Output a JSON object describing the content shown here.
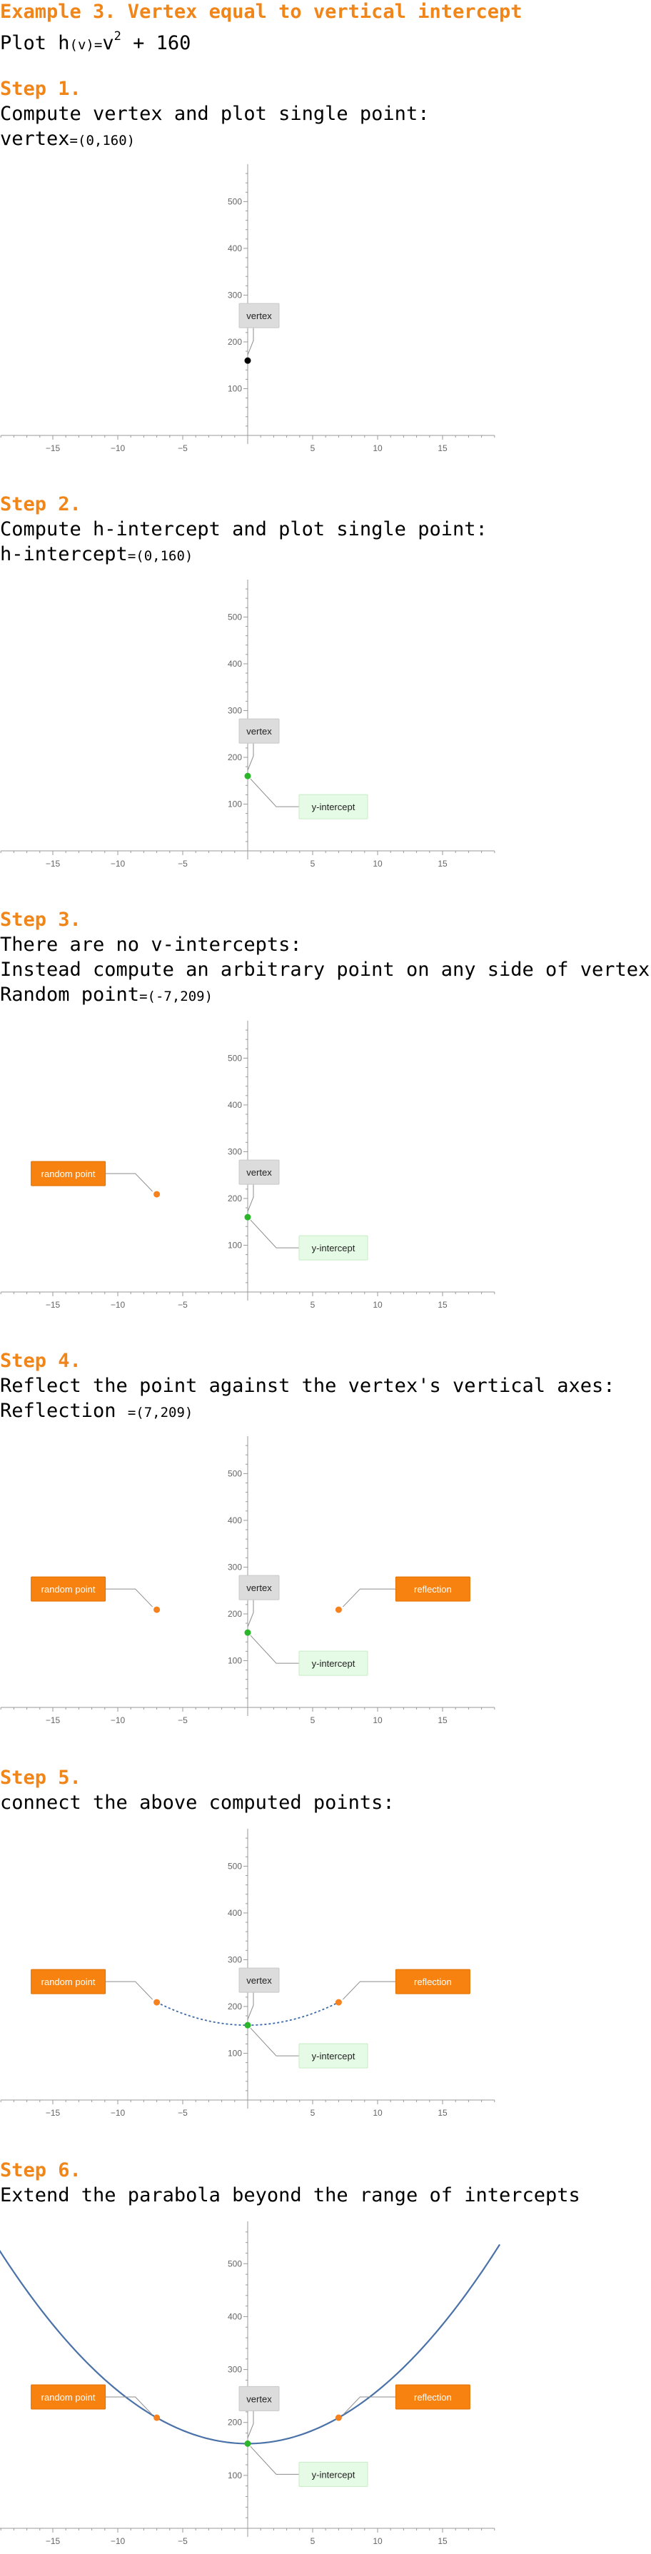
{
  "header": {
    "title": "Example 3. Vertex equal to vertical intercept",
    "problem": {
      "prefix": "Plot h",
      "arg": "(v)",
      "eq": "=",
      "base": "v",
      "exp": "2",
      "rest": " + 160"
    }
  },
  "steps": [
    {
      "label": "Step 1.",
      "lines": [
        {
          "text": "Compute vertex and plot single point:"
        },
        {
          "name": "vertex",
          "eq": "=",
          "val": "(0,160)"
        }
      ]
    },
    {
      "label": "Step 2.",
      "lines": [
        {
          "text": "Compute h-intercept and plot single point:"
        },
        {
          "name": "h-intercept",
          "eq": "=",
          "val": "(0,160)"
        }
      ]
    },
    {
      "label": "Step 3.",
      "lines": [
        {
          "text": "There are no v-intercepts:"
        },
        {
          "text": "Instead compute an arbitrary point on any side of vertex:"
        },
        {
          "name": "Random point",
          "eq": "=",
          "val": "(-7,209)"
        }
      ]
    },
    {
      "label": "Step 4.",
      "lines": [
        {
          "text": "Reflect the point against the vertex's vertical axes:"
        },
        {
          "name": "Reflection ",
          "eq": "=",
          "val": "(7,209)"
        }
      ]
    },
    {
      "label": "Step 5.",
      "lines": [
        {
          "text": "connect the above computed points:"
        }
      ]
    },
    {
      "label": "Step 6.",
      "lines": [
        {
          "text": "Extend the parabola beyond the range of intercepts"
        }
      ]
    }
  ],
  "chart_data": [
    {
      "type": "scatter",
      "xlim": [
        -19,
        19
      ],
      "ylim": [
        -20,
        560
      ],
      "xticks": [
        -15,
        -10,
        -5,
        5,
        10,
        15
      ],
      "yticks": [
        100,
        200,
        300,
        400,
        500
      ],
      "points": [
        {
          "x": 0,
          "y": 160,
          "color": "#000000"
        }
      ],
      "labels": [
        {
          "text": "vertex",
          "x": 0,
          "y": 160,
          "style": "gray"
        }
      ],
      "curve": "none"
    },
    {
      "type": "scatter",
      "xlim": [
        -19,
        19
      ],
      "ylim": [
        -20,
        560
      ],
      "xticks": [
        -15,
        -10,
        -5,
        5,
        10,
        15
      ],
      "yticks": [
        100,
        200,
        300,
        400,
        500
      ],
      "points": [
        {
          "x": 0,
          "y": 160,
          "color": "#2ab52a"
        }
      ],
      "labels": [
        {
          "text": "vertex",
          "x": 0,
          "y": 160,
          "style": "gray"
        },
        {
          "text": "y-intercept",
          "x": 0,
          "y": 160,
          "style": "green"
        }
      ],
      "curve": "none"
    },
    {
      "type": "scatter",
      "xlim": [
        -19,
        19
      ],
      "ylim": [
        -20,
        560
      ],
      "xticks": [
        -15,
        -10,
        -5,
        5,
        10,
        15
      ],
      "yticks": [
        100,
        200,
        300,
        400,
        500
      ],
      "points": [
        {
          "x": -7,
          "y": 209,
          "color": "#f5821f"
        },
        {
          "x": 0,
          "y": 160,
          "color": "#2ab52a"
        }
      ],
      "labels": [
        {
          "text": "random point",
          "x": -7,
          "y": 209,
          "style": "orange"
        },
        {
          "text": "vertex",
          "x": 0,
          "y": 160,
          "style": "gray"
        },
        {
          "text": "y-intercept",
          "x": 0,
          "y": 160,
          "style": "green"
        }
      ],
      "curve": "none"
    },
    {
      "type": "scatter",
      "xlim": [
        -19,
        19
      ],
      "ylim": [
        -20,
        560
      ],
      "xticks": [
        -15,
        -10,
        -5,
        5,
        10,
        15
      ],
      "yticks": [
        100,
        200,
        300,
        400,
        500
      ],
      "points": [
        {
          "x": -7,
          "y": 209,
          "color": "#f5821f"
        },
        {
          "x": 7,
          "y": 209,
          "color": "#f5821f"
        },
        {
          "x": 0,
          "y": 160,
          "color": "#2ab52a"
        }
      ],
      "labels": [
        {
          "text": "random point",
          "x": -7,
          "y": 209,
          "style": "orange"
        },
        {
          "text": "reflection",
          "x": 7,
          "y": 209,
          "style": "orange"
        },
        {
          "text": "vertex",
          "x": 0,
          "y": 160,
          "style": "gray"
        },
        {
          "text": "y-intercept",
          "x": 0,
          "y": 160,
          "style": "green"
        }
      ],
      "curve": "none"
    },
    {
      "type": "line",
      "xlim": [
        -19,
        19
      ],
      "ylim": [
        -20,
        560
      ],
      "xticks": [
        -15,
        -10,
        -5,
        5,
        10,
        15
      ],
      "yticks": [
        100,
        200,
        300,
        400,
        500
      ],
      "points": [
        {
          "x": -7,
          "y": 209,
          "color": "#f5821f"
        },
        {
          "x": 7,
          "y": 209,
          "color": "#f5821f"
        },
        {
          "x": 0,
          "y": 160,
          "color": "#2ab52a"
        }
      ],
      "labels": [
        {
          "text": "random point",
          "x": -7,
          "y": 209,
          "style": "orange"
        },
        {
          "text": "reflection",
          "x": 7,
          "y": 209,
          "style": "orange"
        },
        {
          "text": "vertex",
          "x": 0,
          "y": 160,
          "style": "gray"
        },
        {
          "text": "y-intercept",
          "x": 0,
          "y": 160,
          "style": "green"
        }
      ],
      "curve": "dashed",
      "curve_range": [
        -7,
        7
      ],
      "curve_color": "#3d6aa8"
    },
    {
      "type": "line",
      "xlim": [
        -20,
        19
      ],
      "ylim": [
        -20,
        560
      ],
      "xticks": [
        -15,
        -10,
        -5,
        5,
        10,
        15
      ],
      "yticks": [
        100,
        200,
        300,
        400,
        500
      ],
      "points": [
        {
          "x": -7,
          "y": 209,
          "color": "#f5821f"
        },
        {
          "x": 7,
          "y": 209,
          "color": "#f5821f"
        },
        {
          "x": 0,
          "y": 160,
          "color": "#2ab52a"
        }
      ],
      "labels": [
        {
          "text": "random point",
          "x": -7,
          "y": 209,
          "style": "orange"
        },
        {
          "text": "reflection",
          "x": 7,
          "y": 209,
          "style": "orange"
        },
        {
          "text": "vertex",
          "x": 0,
          "y": 160,
          "style": "gray"
        },
        {
          "text": "y-intercept",
          "x": 0,
          "y": 160,
          "style": "green"
        }
      ],
      "curve": "solid",
      "curve_range": [
        -19.4,
        19.4
      ],
      "curve_color": "#4a72a8"
    }
  ]
}
